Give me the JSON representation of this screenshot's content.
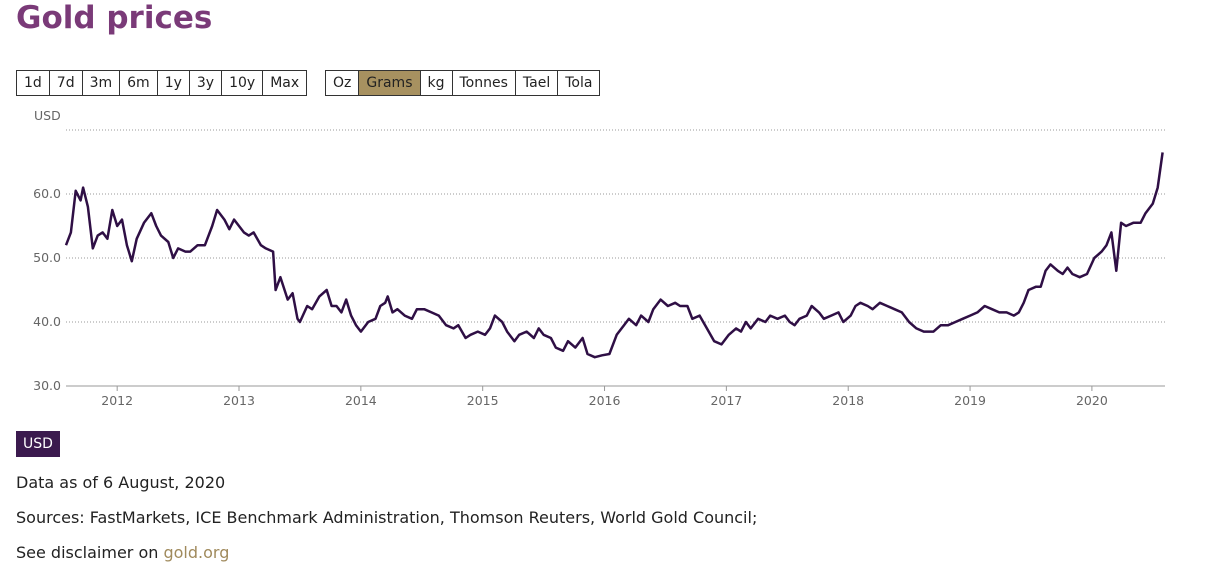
{
  "header": {
    "title": "Gold prices"
  },
  "ranges": [
    "1d",
    "7d",
    "3m",
    "6m",
    "1y",
    "3y",
    "10y",
    "Max"
  ],
  "units": [
    {
      "label": "Oz",
      "selected": false
    },
    {
      "label": "Grams",
      "selected": true
    },
    {
      "label": "kg",
      "selected": false
    },
    {
      "label": "Tonnes",
      "selected": false
    },
    {
      "label": "Tael",
      "selected": false
    },
    {
      "label": "Tola",
      "selected": false
    }
  ],
  "chart_data": {
    "type": "line",
    "y_axis_label": "USD",
    "color": "#2f0f45",
    "grid": true,
    "xlim": [
      2011.58,
      2020.6
    ],
    "xticks": [
      2012,
      2013,
      2014,
      2015,
      2016,
      2017,
      2018,
      2019,
      2020
    ],
    "ylim": [
      30,
      70
    ],
    "yticks": [
      {
        "value": 30,
        "label": "30.0"
      },
      {
        "value": 40,
        "label": "40.0"
      },
      {
        "value": 50,
        "label": "50.0"
      },
      {
        "value": 60,
        "label": "60.0"
      }
    ],
    "x": [
      2011.58,
      2011.62,
      2011.66,
      2011.7,
      2011.72,
      2011.76,
      2011.8,
      2011.84,
      2011.88,
      2011.92,
      2011.96,
      2012.0,
      2012.04,
      2012.08,
      2012.12,
      2012.16,
      2012.22,
      2012.28,
      2012.32,
      2012.36,
      2012.42,
      2012.46,
      2012.5,
      2012.56,
      2012.6,
      2012.66,
      2012.72,
      2012.78,
      2012.82,
      2012.88,
      2012.92,
      2012.96,
      2013.04,
      2013.08,
      2013.12,
      2013.18,
      2013.22,
      2013.28,
      2013.3,
      2013.34,
      2013.4,
      2013.44,
      2013.48,
      2013.5,
      2013.56,
      2013.6,
      2013.66,
      2013.72,
      2013.76,
      2013.8,
      2013.84,
      2013.88,
      2013.92,
      2013.96,
      2014.0,
      2014.06,
      2014.12,
      2014.16,
      2014.2,
      2014.22,
      2014.26,
      2014.3,
      2014.36,
      2014.42,
      2014.46,
      2014.52,
      2014.58,
      2014.64,
      2014.7,
      2014.76,
      2014.8,
      2014.86,
      2014.9,
      2014.96,
      2015.02,
      2015.06,
      2015.1,
      2015.16,
      2015.2,
      2015.26,
      2015.3,
      2015.36,
      2015.42,
      2015.46,
      2015.5,
      2015.56,
      2015.6,
      2015.66,
      2015.7,
      2015.76,
      2015.82,
      2015.86,
      2015.92,
      2015.98,
      2016.04,
      2016.1,
      2016.16,
      2016.2,
      2016.26,
      2016.3,
      2016.36,
      2016.4,
      2016.46,
      2016.52,
      2016.58,
      2016.62,
      2016.68,
      2016.72,
      2016.78,
      2016.84,
      2016.9,
      2016.96,
      2017.02,
      2017.08,
      2017.12,
      2017.16,
      2017.2,
      2017.26,
      2017.32,
      2017.36,
      2017.42,
      2017.48,
      2017.52,
      2017.56,
      2017.6,
      2017.66,
      2017.7,
      2017.76,
      2017.8,
      2017.86,
      2017.92,
      2017.96,
      2018.02,
      2018.06,
      2018.1,
      2018.16,
      2018.2,
      2018.26,
      2018.32,
      2018.38,
      2018.44,
      2018.5,
      2018.56,
      2018.62,
      2018.66,
      2018.7,
      2018.76,
      2018.82,
      2018.88,
      2018.94,
      2019.0,
      2019.06,
      2019.12,
      2019.18,
      2019.24,
      2019.3,
      2019.36,
      2019.4,
      2019.44,
      2019.48,
      2019.54,
      2019.58,
      2019.62,
      2019.66,
      2019.72,
      2019.76,
      2019.8,
      2019.84,
      2019.9,
      2019.96,
      2020.02,
      2020.08,
      2020.12,
      2020.16,
      2020.2,
      2020.24,
      2020.28,
      2020.34,
      2020.4,
      2020.44,
      2020.5,
      2020.54,
      2020.58
    ],
    "values": [
      52,
      54,
      60.5,
      59,
      61,
      58,
      51.5,
      53.5,
      54,
      53,
      57.5,
      55,
      56,
      52,
      49.5,
      53,
      55.5,
      57,
      55,
      53.5,
      52.5,
      50,
      51.5,
      51,
      51,
      52,
      52,
      55,
      57.5,
      56,
      54.5,
      56,
      54,
      53.5,
      54,
      52,
      51.5,
      51,
      45,
      47,
      43.5,
      44.5,
      40.5,
      40,
      42.5,
      42,
      44,
      45,
      42.5,
      42.5,
      41.5,
      43.5,
      41,
      39.5,
      38.5,
      40,
      40.5,
      42.5,
      43,
      44,
      41.5,
      42,
      41,
      40.5,
      42,
      42,
      41.5,
      41,
      39.5,
      39,
      39.5,
      37.5,
      38,
      38.5,
      38,
      39,
      41,
      40,
      38.5,
      37,
      38,
      38.5,
      37.5,
      39,
      38,
      37.5,
      36,
      35.5,
      37,
      36,
      37.5,
      35,
      34.5,
      34.8,
      35,
      38,
      39.5,
      40.5,
      39.5,
      41,
      40,
      42,
      43.5,
      42.5,
      43,
      42.5,
      42.5,
      40.5,
      41,
      39,
      37,
      36.5,
      38,
      39,
      38.5,
      40,
      39,
      40.5,
      40,
      41,
      40.5,
      41,
      40,
      39.5,
      40.5,
      41,
      42.5,
      41.5,
      40.5,
      41,
      41.5,
      40,
      41,
      42.5,
      43,
      42.5,
      42,
      43,
      42.5,
      42,
      41.5,
      40,
      39,
      38.5,
      38.5,
      38.5,
      39.5,
      39.5,
      40,
      40.5,
      41,
      41.5,
      42.5,
      42,
      41.5,
      41.5,
      41,
      41.5,
      43,
      45,
      45.5,
      45.5,
      48,
      49,
      48,
      47.5,
      48.5,
      47.5,
      47,
      47.5,
      50,
      51,
      52,
      54,
      48,
      55.5,
      55,
      55.5,
      55.5,
      57,
      58.5,
      61,
      66.5
    ]
  },
  "currency": "USD",
  "footer": {
    "as_of": "Data as of 6 August, 2020",
    "sources": "Sources: FastMarkets, ICE Benchmark Administration, Thomson Reuters, World Gold Council;",
    "disclaimer": "See disclaimer on ",
    "link": "gold.org"
  }
}
